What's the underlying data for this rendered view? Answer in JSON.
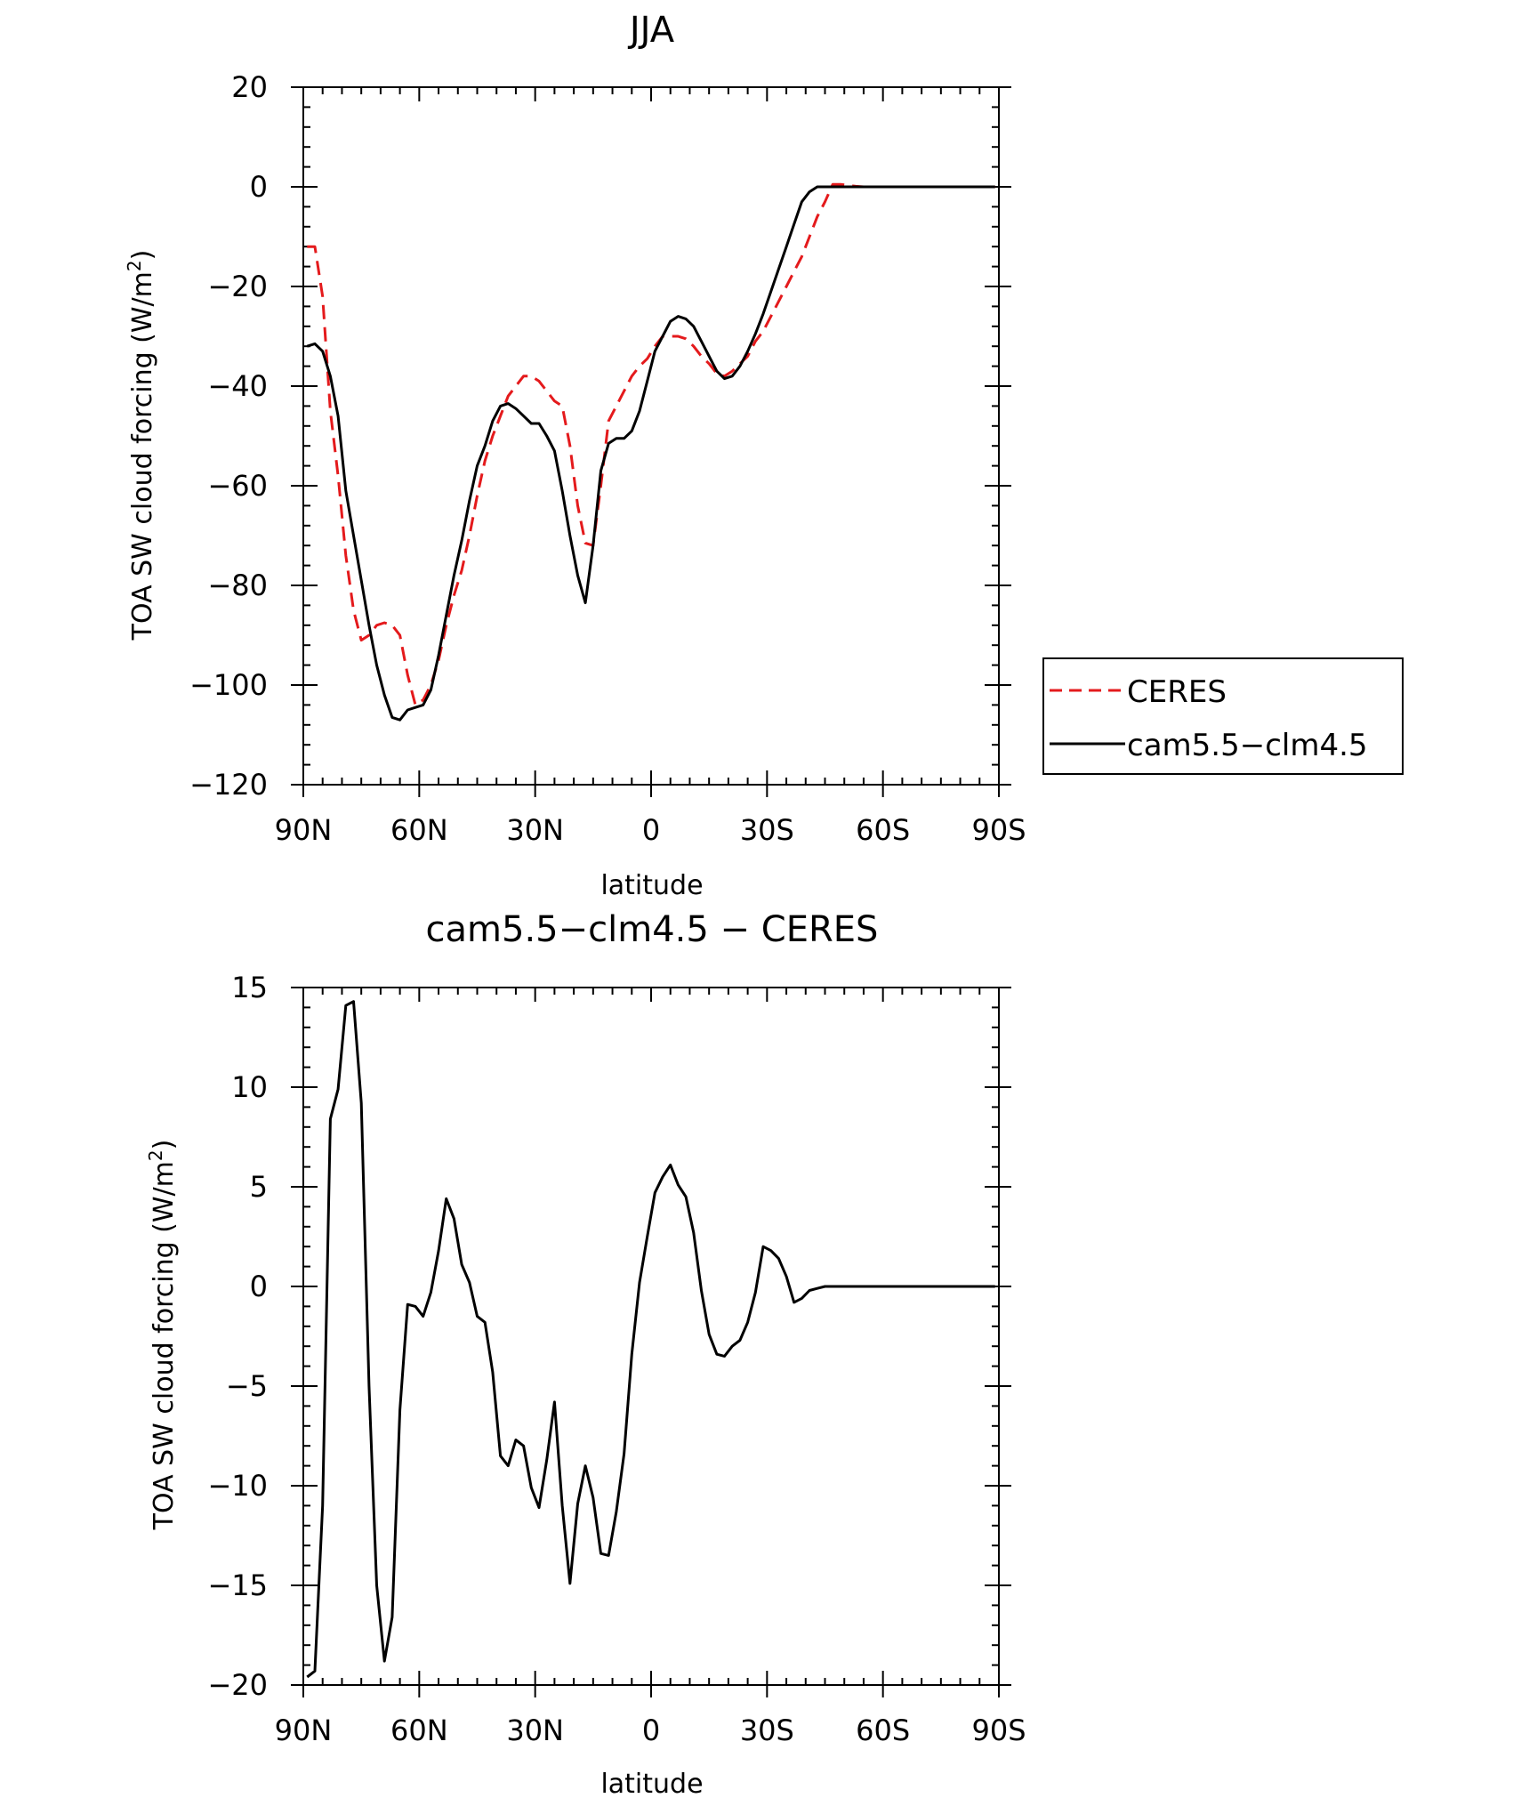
{
  "chart_data": [
    {
      "type": "line",
      "title": "JJA",
      "xlabel": "latitude",
      "ylabel": "TOA SW cloud forcing (W/m",
      "ylabel_sup": "2",
      "ylabel_close": ")",
      "xlim": [
        90,
        -90
      ],
      "ylim": [
        -120,
        20
      ],
      "xticks": [
        {
          "value": 90,
          "label": "90N"
        },
        {
          "value": 60,
          "label": "60N"
        },
        {
          "value": 30,
          "label": "30N"
        },
        {
          "value": 0,
          "label": "0"
        },
        {
          "value": -30,
          "label": "30S"
        },
        {
          "value": -60,
          "label": "60S"
        },
        {
          "value": -90,
          "label": "90S"
        }
      ],
      "yticks": [
        {
          "value": 20,
          "label": "20"
        },
        {
          "value": 0,
          "label": "0"
        },
        {
          "value": -20,
          "label": "−20"
        },
        {
          "value": -40,
          "label": "−40"
        },
        {
          "value": -60,
          "label": "−60"
        },
        {
          "value": -80,
          "label": "−80"
        },
        {
          "value": -100,
          "label": "−100"
        },
        {
          "value": -120,
          "label": "−120"
        }
      ],
      "legend": "right",
      "series": [
        {
          "name": "CERES",
          "color": "#e41a1c",
          "dash": true,
          "x": [
            89,
            87,
            85,
            83,
            81,
            79,
            77,
            75,
            73,
            71,
            69,
            67,
            65,
            63,
            61,
            59,
            57,
            55,
            53,
            51,
            49,
            47,
            45,
            43,
            41,
            39,
            37,
            35,
            33,
            31,
            29,
            27,
            25,
            23,
            21,
            19,
            17,
            15,
            13,
            11,
            9,
            7,
            5,
            3,
            1,
            -1,
            -3,
            -5,
            -7,
            -9,
            -11,
            -13,
            -15,
            -17,
            -19,
            -21,
            -23,
            -25,
            -27,
            -29,
            -31,
            -33,
            -35,
            -37,
            -39,
            -41,
            -43,
            -45,
            -47,
            -49,
            -51,
            -53,
            -55,
            -57,
            -59,
            -61,
            -63,
            -65,
            -67,
            -69,
            -71,
            -73,
            -75,
            -77,
            -79,
            -81,
            -83,
            -85,
            -87,
            -89
          ],
          "y": [
            -12,
            -12,
            -22,
            -45,
            -58,
            -74,
            -85,
            -91,
            -90,
            -88,
            -87.5,
            -88,
            -90,
            -98,
            -104,
            -103,
            -100,
            -95,
            -88,
            -82,
            -77,
            -70,
            -62,
            -55,
            -50,
            -46,
            -42,
            -40,
            -38,
            -38,
            -39,
            -41,
            -43,
            -44,
            -52,
            -64,
            -71.5,
            -72,
            -60,
            -47,
            -44,
            -41,
            -38,
            -36,
            -34.5,
            -32,
            -30,
            -30,
            -30,
            -30.5,
            -32,
            -34,
            -35.5,
            -37.5,
            -38,
            -37,
            -35.5,
            -34,
            -31,
            -29,
            -26,
            -23,
            -20,
            -17,
            -14,
            -10,
            -6,
            -3,
            0.5,
            0.5,
            0.3,
            0.1,
            0,
            0,
            0,
            0,
            0,
            0,
            0,
            0,
            0,
            0,
            0,
            0,
            0,
            0,
            0,
            0,
            0,
            0
          ]
        },
        {
          "name": "cam5.5−clm4.5",
          "color": "#000000",
          "dash": false,
          "x": [
            89,
            87,
            85,
            83,
            81,
            79,
            77,
            75,
            73,
            71,
            69,
            67,
            65,
            63,
            61,
            59,
            57,
            55,
            53,
            51,
            49,
            47,
            45,
            43,
            41,
            39,
            37,
            35,
            33,
            31,
            29,
            27,
            25,
            23,
            21,
            19,
            17,
            15,
            13,
            11,
            9,
            7,
            5,
            3,
            1,
            -1,
            -3,
            -5,
            -7,
            -9,
            -11,
            -13,
            -15,
            -17,
            -19,
            -21,
            -23,
            -25,
            -27,
            -29,
            -31,
            -33,
            -35,
            -37,
            -39,
            -41,
            -43,
            -45,
            -47,
            -49,
            -51,
            -53,
            -55,
            -57,
            -59,
            -61,
            -63,
            -65,
            -67,
            -69,
            -71,
            -73,
            -75,
            -77,
            -79,
            -81,
            -83,
            -85,
            -87,
            -89
          ],
          "y": [
            -32,
            -31.5,
            -33,
            -38,
            -46,
            -61,
            -70,
            -79,
            -88,
            -96,
            -102,
            -106.5,
            -107,
            -105,
            -104.5,
            -104,
            -101,
            -94,
            -86,
            -78,
            -71,
            -63,
            -56,
            -52,
            -47,
            -44,
            -43.5,
            -44.5,
            -46,
            -47.5,
            -47.5,
            -50,
            -53,
            -61,
            -70,
            -78,
            -83.5,
            -72,
            -57,
            -51.5,
            -50.5,
            -50.5,
            -49,
            -45,
            -39,
            -33,
            -30,
            -27,
            -26,
            -26.5,
            -28,
            -31,
            -34,
            -37,
            -38.5,
            -38,
            -36,
            -33,
            -29.5,
            -25.5,
            -21,
            -16.5,
            -12,
            -7.5,
            -3,
            -1,
            0,
            0,
            0,
            0,
            0,
            0,
            0,
            0,
            0,
            0,
            0,
            0,
            0,
            0,
            0,
            0,
            0,
            0,
            0,
            0,
            0,
            0,
            0,
            0
          ]
        }
      ]
    },
    {
      "type": "line",
      "title": "cam5.5−clm4.5 − CERES",
      "xlabel": "latitude",
      "ylabel": "TOA SW cloud forcing (W/m",
      "ylabel_sup": "2",
      "ylabel_close": ")",
      "xlim": [
        90,
        -90
      ],
      "ylim": [
        -20,
        15
      ],
      "xticks": [
        {
          "value": 90,
          "label": "90N"
        },
        {
          "value": 60,
          "label": "60N"
        },
        {
          "value": 30,
          "label": "30N"
        },
        {
          "value": 0,
          "label": "0"
        },
        {
          "value": -30,
          "label": "30S"
        },
        {
          "value": -60,
          "label": "60S"
        },
        {
          "value": -90,
          "label": "90S"
        }
      ],
      "yticks": [
        {
          "value": 15,
          "label": "15"
        },
        {
          "value": 10,
          "label": "10"
        },
        {
          "value": 5,
          "label": "5"
        },
        {
          "value": 0,
          "label": "0"
        },
        {
          "value": -5,
          "label": "−5"
        },
        {
          "value": -10,
          "label": "−10"
        },
        {
          "value": -15,
          "label": "−15"
        },
        {
          "value": -20,
          "label": "−20"
        }
      ],
      "series": [
        {
          "color": "#000000",
          "dash": false,
          "x": [
            89,
            87,
            85,
            83,
            81,
            79,
            77,
            75,
            73,
            71,
            69,
            67,
            65,
            63,
            61,
            59,
            57,
            55,
            53,
            51,
            49,
            47,
            45,
            43,
            41,
            39,
            37,
            35,
            33,
            31,
            29,
            27,
            25,
            23,
            21,
            19,
            17,
            15,
            13,
            11,
            9,
            7,
            5,
            3,
            1,
            -1,
            -3,
            -5,
            -7,
            -9,
            -11,
            -13,
            -15,
            -17,
            -19,
            -21,
            -23,
            -25,
            -27,
            -29,
            -31,
            -33,
            -35,
            -37,
            -39,
            -41,
            -43,
            -45,
            -47,
            -49,
            -51,
            -53,
            -55,
            -57,
            -59,
            -61,
            -63,
            -65,
            -67,
            -69,
            -71,
            -73,
            -75,
            -77,
            -79,
            -81,
            -83,
            -85,
            -87,
            -89
          ],
          "y": [
            -19.6,
            -19.3,
            -11,
            8.4,
            9.9,
            14.1,
            14.3,
            9.2,
            -5,
            -15,
            -18.8,
            -16.6,
            -6.2,
            -0.9,
            -1,
            -1.5,
            -0.3,
            1.8,
            4.4,
            3.4,
            1.1,
            0.2,
            -1.5,
            -1.8,
            -4.3,
            -8.5,
            -9,
            -7.7,
            -8,
            -10.1,
            -11.1,
            -8.7,
            -5.8,
            -11,
            -14.9,
            -10.9,
            -9,
            -10.6,
            -13.4,
            -13.5,
            -11.3,
            -8.4,
            -3.4,
            0.2,
            2.5,
            4.7,
            5.5,
            6.1,
            5.1,
            4.5,
            2.7,
            -0.2,
            -2.4,
            -3.4,
            -3.5,
            -3,
            -2.7,
            -1.8,
            -0.3,
            2,
            1.8,
            1.4,
            0.5,
            -0.8,
            -0.6,
            -0.2,
            -0.1,
            0,
            0,
            0,
            0,
            0,
            0,
            0,
            0,
            0,
            0,
            0,
            0,
            0,
            0,
            0,
            0,
            0,
            0,
            0,
            0,
            0,
            0,
            0
          ]
        }
      ]
    }
  ]
}
